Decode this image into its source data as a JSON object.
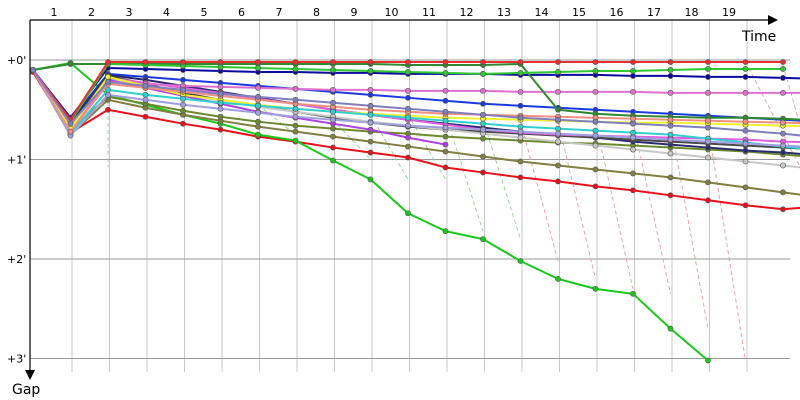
{
  "chart_data": {
    "type": "line",
    "title": "",
    "xlabel": "Time",
    "ylabel": "Gap",
    "x_ticks": [
      "1",
      "2",
      "3",
      "4",
      "5",
      "6",
      "7",
      "8",
      "9",
      "10",
      "11",
      "12",
      "13",
      "14",
      "15",
      "16",
      "17",
      "18",
      "19"
    ],
    "y_ticks": [
      "+0'",
      "+1'",
      "+2'",
      "+3'"
    ],
    "y_unit": "minutes",
    "ylim": [
      -0.3,
      3.2
    ],
    "grid": true,
    "legend": "none",
    "pit_stop_colors": {
      "green": "#99d699",
      "red": "#f0a0a0"
    },
    "series": [
      {
        "color": "#e8101a",
        "values": [
          0.12,
          0.73,
          0.5,
          0.57,
          0.64,
          0.7,
          0.77,
          0.82,
          0.88,
          0.93,
          0.98,
          1.08,
          1.13,
          1.18,
          1.22,
          1.27,
          1.31,
          1.36,
          1.41,
          1.46,
          1.5,
          1.47
        ],
        "pits": []
      },
      {
        "color": "#19c919",
        "values": [
          0.1,
          0.03,
          0.35,
          0.45,
          0.55,
          0.64,
          0.75,
          0.81,
          1.01,
          1.2,
          1.54,
          1.72,
          1.8,
          2.02,
          2.2,
          2.3,
          2.35,
          2.7,
          3.02
        ],
        "pits": []
      },
      {
        "color": "#808040",
        "values": [
          0.1,
          0.75,
          0.4,
          0.48,
          0.55,
          0.61,
          0.67,
          0.72,
          0.77,
          0.82,
          0.87,
          0.92,
          0.97,
          1.02,
          1.06,
          1.1,
          1.14,
          1.18,
          1.23,
          1.28,
          1.33,
          1.38
        ],
        "pits": []
      },
      {
        "color": "#6d8a2e",
        "values": [
          0.1,
          0.7,
          0.37,
          0.44,
          0.51,
          0.57,
          0.62,
          0.66,
          0.69,
          0.72,
          0.74,
          0.77,
          0.79,
          0.81,
          0.83,
          0.84,
          0.86,
          0.88,
          0.9,
          0.92,
          0.95,
          0.98
        ],
        "pits": []
      },
      {
        "color": "#0a0a9e",
        "values": [
          0.1,
          0.58,
          0.08,
          0.09,
          0.1,
          0.11,
          0.12,
          0.12,
          0.13,
          0.13,
          0.14,
          0.14,
          0.14,
          0.15,
          0.15,
          0.15,
          0.16,
          0.16,
          0.17,
          0.17,
          0.18,
          0.19
        ],
        "pits": []
      },
      {
        "color": "#1a3ae0",
        "values": [
          0.1,
          0.6,
          0.14,
          0.17,
          0.2,
          0.23,
          0.26,
          0.29,
          0.32,
          0.35,
          0.38,
          0.41,
          0.44,
          0.46,
          0.48,
          0.5,
          0.52,
          0.54,
          0.56,
          0.58,
          0.6,
          0.62
        ],
        "pits": []
      },
      {
        "color": "#2a2a70",
        "values": [
          0.1,
          0.63,
          0.15,
          0.2,
          0.26,
          0.32,
          0.38,
          0.44,
          0.5,
          0.55,
          0.6,
          0.64,
          0.68,
          0.72,
          0.75,
          0.78,
          0.82,
          0.85,
          0.88,
          0.91,
          0.93,
          0.96
        ],
        "pits": []
      },
      {
        "color": "#4a4a4a",
        "values": [
          0.1,
          0.66,
          0.16,
          0.24,
          0.33,
          0.4,
          0.46,
          0.52,
          0.58,
          0.63,
          0.67,
          0.7,
          0.72,
          0.74,
          0.76,
          0.78,
          0.8,
          0.82,
          0.84,
          0.86,
          0.88,
          0.9
        ],
        "pits": []
      },
      {
        "color": "#c8c8c8",
        "values": [
          0.1,
          0.67,
          0.19,
          0.28,
          0.35,
          0.41,
          0.47,
          0.52,
          0.57,
          0.62,
          0.66,
          0.7,
          0.74,
          0.78,
          0.82,
          0.86,
          0.9,
          0.94,
          0.98,
          1.02,
          1.06,
          1.1
        ],
        "pits": []
      },
      {
        "color": "#e060e0",
        "values": [
          0.1,
          0.72,
          0.18,
          0.23,
          0.28,
          0.33,
          0.39,
          0.44,
          0.5,
          0.55,
          0.6,
          0.65,
          0.7,
          0.73,
          0.75,
          0.76,
          0.77,
          0.78,
          0.79,
          0.8,
          0.82,
          0.83
        ],
        "pits": []
      },
      {
        "color": "#b040e0",
        "values": [
          0.1,
          0.71,
          0.2,
          0.28,
          0.36,
          0.44,
          0.52,
          0.58,
          0.64,
          0.7,
          0.78,
          0.85
        ],
        "pits": []
      },
      {
        "color": "#e070d0",
        "values": [
          0.1,
          0.68,
          0.22,
          0.24,
          0.26,
          0.27,
          0.28,
          0.29,
          0.3,
          0.3,
          0.31,
          0.31,
          0.31,
          0.32,
          0.32,
          0.32,
          0.32,
          0.33,
          0.33,
          0.33,
          0.33,
          0.33
        ],
        "pits": []
      },
      {
        "color": "#2f8a2f",
        "values": [
          0.1,
          0.04,
          0.04,
          0.04,
          0.04,
          0.04,
          0.04,
          0.04,
          0.04,
          0.04,
          0.05,
          0.05,
          0.05,
          0.04,
          0.5,
          0.54,
          0.56,
          0.57,
          0.58,
          0.58,
          0.59,
          0.61
        ],
        "pits": []
      },
      {
        "color": "#30c830",
        "values": [
          0.1,
          0.62,
          0.04,
          0.05,
          0.06,
          0.07,
          0.08,
          0.09,
          0.1,
          0.11,
          0.12,
          0.13,
          0.14,
          0.13,
          0.12,
          0.11,
          0.11,
          0.1,
          0.09,
          0.09,
          0.09
        ],
        "pits": []
      },
      {
        "color": "#f0f030",
        "values": [
          0.1,
          0.69,
          0.17,
          0.26,
          0.35,
          0.4,
          0.45,
          0.49,
          0.52,
          0.54,
          0.56,
          0.58,
          0.59,
          0.6,
          0.61,
          0.62,
          0.63,
          0.63,
          0.64,
          0.65,
          0.66,
          0.67
        ],
        "pits": []
      },
      {
        "color": "#30d0d0",
        "values": [
          0.1,
          0.74,
          0.3,
          0.35,
          0.39,
          0.43,
          0.46,
          0.49,
          0.52,
          0.55,
          0.58,
          0.61,
          0.64,
          0.67,
          0.69,
          0.71,
          0.73,
          0.75,
          0.79,
          0.83,
          0.87,
          0.91
        ],
        "pits": []
      },
      {
        "color": "#a0a0e0",
        "values": [
          0.1,
          0.76,
          0.35,
          0.4,
          0.45,
          0.49,
          0.53,
          0.57,
          0.6,
          0.63,
          0.66,
          0.68,
          0.7,
          0.72,
          0.74,
          0.76,
          0.78,
          0.8,
          0.82,
          0.84,
          0.86,
          0.88
        ],
        "pits": []
      },
      {
        "color": "#f09080",
        "values": [
          0.1,
          0.72,
          0.24,
          0.28,
          0.32,
          0.36,
          0.4,
          0.44,
          0.47,
          0.5,
          0.52,
          0.54,
          0.55,
          0.56,
          0.57,
          0.58,
          0.59,
          0.6,
          0.61,
          0.62,
          0.63,
          0.64
        ],
        "pits": []
      },
      {
        "color": "#e83030",
        "values": [
          0.1,
          0.6,
          0.02,
          0.02,
          0.02,
          0.02,
          0.02,
          0.02,
          0.02,
          0.02,
          0.02,
          0.02,
          0.02,
          0.02,
          0.02,
          0.02,
          0.02,
          0.02,
          0.02,
          0.02,
          0.02
        ],
        "pits": []
      },
      {
        "color": "#8080c0",
        "values": [
          0.1,
          0.64,
          0.22,
          0.26,
          0.3,
          0.34,
          0.37,
          0.4,
          0.43,
          0.46,
          0.49,
          0.52,
          0.55,
          0.58,
          0.6,
          0.62,
          0.64,
          0.66,
          0.68,
          0.71,
          0.74,
          0.78
        ],
        "pits": []
      }
    ]
  }
}
